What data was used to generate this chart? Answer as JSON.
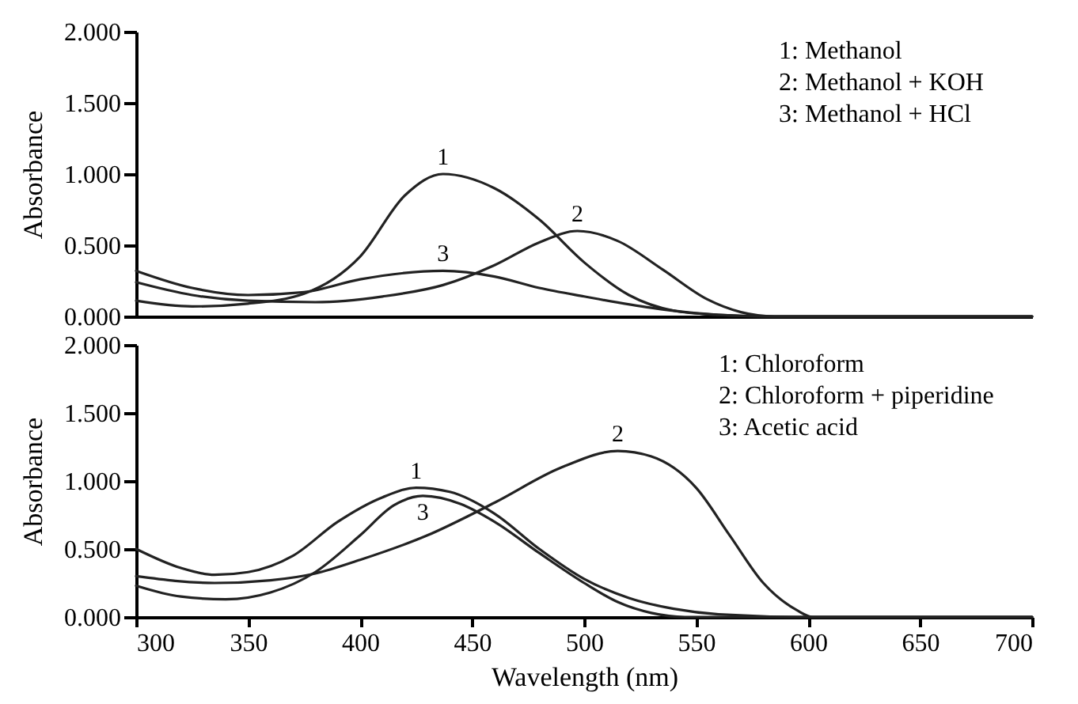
{
  "chart_data": [
    {
      "type": "line",
      "ylabel": "Absorbance",
      "xlim": [
        300,
        700
      ],
      "ylim": [
        0,
        2
      ],
      "yticks": [
        {
          "value": 0,
          "label": "0.000"
        },
        {
          "value": 0.5,
          "label": "0.500"
        },
        {
          "value": 1,
          "label": "1.000"
        },
        {
          "value": 1.5,
          "label": "1.500"
        },
        {
          "value": 2,
          "label": "2.000"
        }
      ],
      "tick_labels": "y",
      "grid": false,
      "marker": "none",
      "line_style": "solid",
      "x": [
        300,
        325,
        350,
        375,
        400,
        420,
        437,
        460,
        480,
        500,
        520,
        540,
        560,
        580,
        700
      ],
      "series": [
        {
          "color": "#222222",
          "values": [
            0.11,
            0.07,
            0.09,
            0.16,
            0.42,
            0.85,
            1.0,
            0.9,
            0.68,
            0.38,
            0.15,
            0.04,
            0.01,
            0,
            0
          ]
        },
        {
          "color": "#222222",
          "x": [
            300,
            325,
            350,
            380,
            410,
            437,
            460,
            480,
            497,
            515,
            535,
            555,
            570,
            585,
            700
          ],
          "values": [
            0.24,
            0.15,
            0.11,
            0.1,
            0.14,
            0.22,
            0.36,
            0.52,
            0.6,
            0.53,
            0.33,
            0.12,
            0.03,
            0,
            0
          ]
        },
        {
          "color": "#222222",
          "x": [
            300,
            325,
            350,
            375,
            400,
            437,
            460,
            480,
            500,
            530,
            560,
            580,
            700
          ],
          "values": [
            0.32,
            0.2,
            0.15,
            0.17,
            0.26,
            0.32,
            0.28,
            0.2,
            0.14,
            0.06,
            0.01,
            0,
            0
          ]
        }
      ],
      "annotations": [
        "1: Methanol",
        "2: Methanol + KOH",
        "3: Methanol + HCl",
        {
          "text": "1",
          "x": 437,
          "y": 1.0
        },
        {
          "text": "2",
          "x": 497,
          "y": 0.6
        },
        {
          "text": "3",
          "x": 437,
          "y": 0.32
        }
      ]
    },
    {
      "type": "line",
      "xlabel": "Wavelength (nm)",
      "ylabel": "Absorbance",
      "xlim": [
        300,
        700
      ],
      "ylim": [
        0,
        2
      ],
      "xticks": [
        300,
        350,
        400,
        450,
        500,
        550,
        600,
        650,
        700
      ],
      "yticks": [
        {
          "value": 0,
          "label": "0.000"
        },
        {
          "value": 0.5,
          "label": "0.500"
        },
        {
          "value": 1,
          "label": "1.000"
        },
        {
          "value": 1.5,
          "label": "1.500"
        },
        {
          "value": 2,
          "label": "2.000"
        }
      ],
      "grid": false,
      "marker": "none",
      "line_style": "solid",
      "series": [
        {
          "color": "#222222",
          "x": [
            300,
            320,
            335,
            350,
            370,
            390,
            410,
            425,
            440,
            460,
            480,
            500,
            520,
            540,
            560,
            600,
            700
          ],
          "values": [
            0.5,
            0.36,
            0.31,
            0.33,
            0.45,
            0.7,
            0.88,
            0.95,
            0.92,
            0.76,
            0.5,
            0.28,
            0.14,
            0.06,
            0.02,
            0,
            0
          ]
        },
        {
          "color": "#222222",
          "x": [
            300,
            335,
            360,
            380,
            400,
            430,
            460,
            490,
            515,
            530,
            550,
            565,
            580,
            595,
            602,
            700
          ],
          "values": [
            0.3,
            0.25,
            0.27,
            0.32,
            0.42,
            0.6,
            0.84,
            1.1,
            1.22,
            1.18,
            0.95,
            0.6,
            0.25,
            0.05,
            0,
            0
          ]
        },
        {
          "color": "#222222",
          "x": [
            300,
            320,
            340,
            360,
            380,
            400,
            415,
            428,
            445,
            460,
            480,
            500,
            515,
            530,
            545,
            700
          ],
          "values": [
            0.23,
            0.15,
            0.13,
            0.18,
            0.33,
            0.6,
            0.82,
            0.89,
            0.83,
            0.7,
            0.47,
            0.25,
            0.11,
            0.03,
            0,
            0
          ]
        }
      ],
      "annotations": [
        "1: Chloroform",
        "2: Chloroform + piperidine",
        "3: Acetic acid",
        {
          "text": "1",
          "x": 425,
          "y": 0.95
        },
        {
          "text": "2",
          "x": 515,
          "y": 1.22
        },
        {
          "text": "3",
          "x": 428,
          "y": 0.89
        }
      ]
    }
  ]
}
